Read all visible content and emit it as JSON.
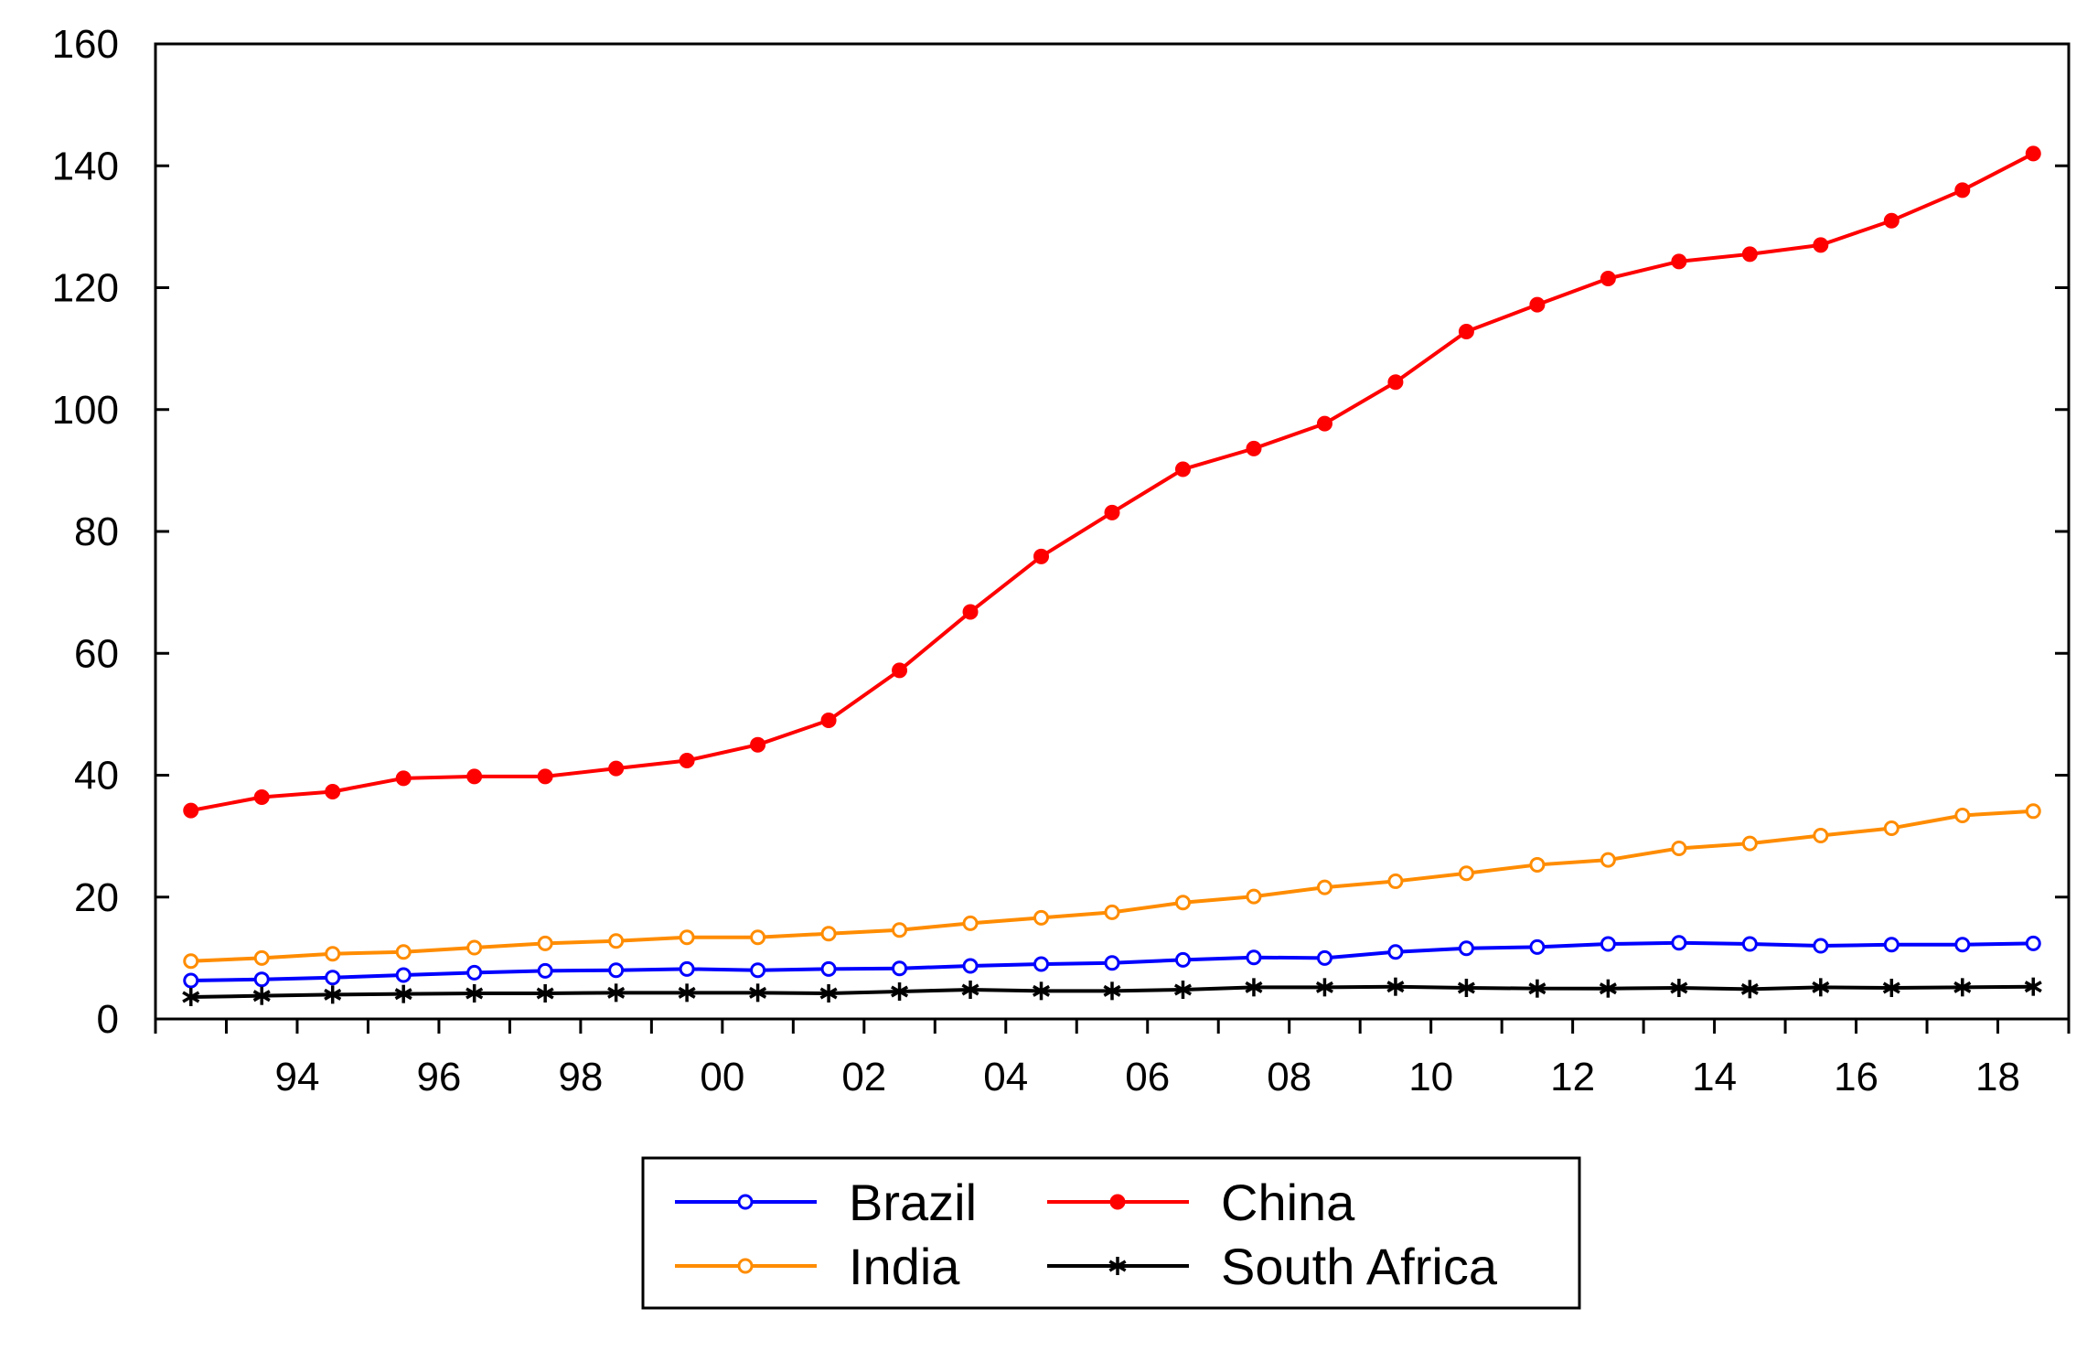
{
  "chart_data": {
    "type": "line",
    "title": "",
    "xlabel": "",
    "ylabel": "",
    "x": [
      1993,
      1994,
      1995,
      1996,
      1997,
      1998,
      1999,
      2000,
      2001,
      2002,
      2003,
      2004,
      2005,
      2006,
      2007,
      2008,
      2009,
      2010,
      2011,
      2012,
      2013,
      2014,
      2015,
      2016,
      2017,
      2018,
      2019
    ],
    "xlim": [
      1992.5,
      2019.5
    ],
    "ylim": [
      0,
      160
    ],
    "y_ticks": [
      {
        "value": 0,
        "label": "0"
      },
      {
        "value": 20,
        "label": "20"
      },
      {
        "value": 40,
        "label": "40"
      },
      {
        "value": 60,
        "label": "60"
      },
      {
        "value": 80,
        "label": "80"
      },
      {
        "value": 100,
        "label": "100"
      },
      {
        "value": 120,
        "label": "120"
      },
      {
        "value": 140,
        "label": "140"
      },
      {
        "value": 160,
        "label": "160"
      }
    ],
    "x_tick_labels": [
      {
        "value": 1994,
        "label": "94"
      },
      {
        "value": 1996,
        "label": "96"
      },
      {
        "value": 1998,
        "label": "98"
      },
      {
        "value": 2000,
        "label": "00"
      },
      {
        "value": 2002,
        "label": "02"
      },
      {
        "value": 2004,
        "label": "04"
      },
      {
        "value": 2006,
        "label": "06"
      },
      {
        "value": 2008,
        "label": "08"
      },
      {
        "value": 2010,
        "label": "10"
      },
      {
        "value": 2012,
        "label": "12"
      },
      {
        "value": 2014,
        "label": "14"
      },
      {
        "value": 2016,
        "label": "16"
      },
      {
        "value": 2018,
        "label": "18"
      }
    ],
    "grid": false,
    "legend_position": "bottom-center",
    "series": [
      {
        "name": "Brazil",
        "color": "#0000ff",
        "marker": "open-circle",
        "values": [
          6.3,
          6.5,
          6.8,
          7.2,
          7.6,
          7.9,
          8.0,
          8.2,
          8.0,
          8.2,
          8.3,
          8.7,
          9.0,
          9.2,
          9.7,
          10.1,
          10.0,
          11.0,
          11.6,
          11.8,
          12.3,
          12.5,
          12.3,
          12.0,
          12.2,
          12.2,
          12.4
        ]
      },
      {
        "name": "China",
        "color": "#ff0000",
        "marker": "filled-circle",
        "values": [
          34.2,
          36.4,
          37.3,
          39.5,
          39.8,
          39.8,
          41.1,
          42.4,
          45.0,
          49.0,
          57.2,
          66.8,
          75.9,
          83.1,
          90.2,
          93.6,
          97.7,
          104.5,
          112.8,
          117.2,
          121.5,
          124.3,
          125.5,
          127.0,
          131.0,
          136.0,
          142.0
        ]
      },
      {
        "name": "India",
        "color": "#ff8c00",
        "marker": "open-circle",
        "values": [
          9.5,
          10.0,
          10.7,
          11.0,
          11.7,
          12.4,
          12.8,
          13.4,
          13.4,
          14.0,
          14.6,
          15.7,
          16.6,
          17.5,
          19.1,
          20.1,
          21.6,
          22.6,
          23.9,
          25.3,
          26.1,
          28.0,
          28.8,
          30.1,
          31.3,
          33.4,
          34.1
        ]
      },
      {
        "name": "South Africa",
        "color": "#000000",
        "marker": "asterisk",
        "values": [
          3.6,
          3.8,
          4.0,
          4.1,
          4.2,
          4.2,
          4.3,
          4.3,
          4.3,
          4.2,
          4.5,
          4.8,
          4.6,
          4.6,
          4.8,
          5.2,
          5.2,
          5.3,
          5.1,
          5.0,
          5.0,
          5.1,
          4.9,
          5.2,
          5.1,
          5.2,
          5.3
        ]
      }
    ]
  }
}
